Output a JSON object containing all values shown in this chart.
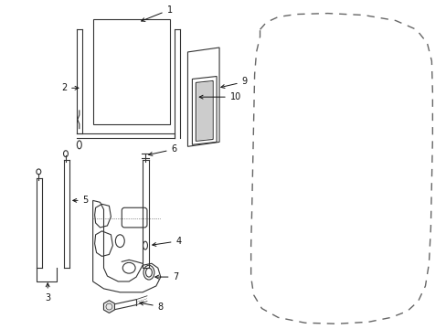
{
  "bg_color": "#ffffff",
  "fig_width": 4.89,
  "fig_height": 3.6,
  "dpi": 100,
  "line_color": "#333333",
  "dash_color": "#555555"
}
